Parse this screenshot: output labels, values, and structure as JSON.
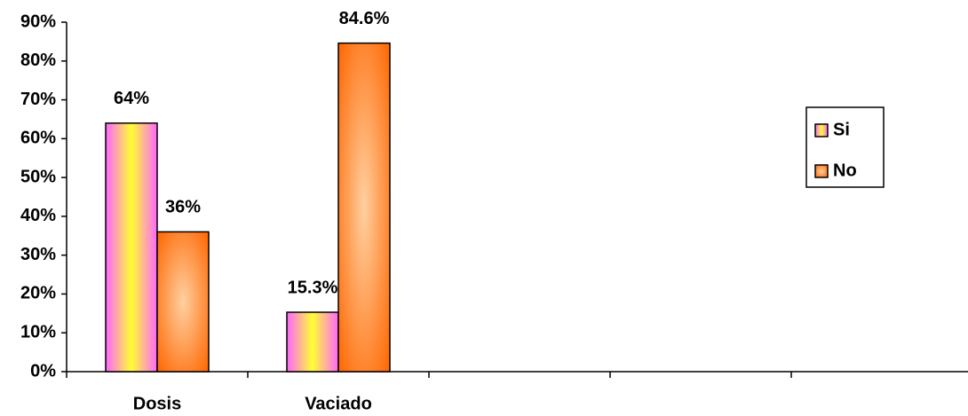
{
  "chart_data": {
    "type": "bar",
    "categories": [
      "Dosis",
      "Vaciado",
      null,
      null,
      null
    ],
    "series": [
      {
        "name": "Si",
        "color": "#ff66ff",
        "values": [
          64,
          15.3,
          null,
          null,
          null
        ],
        "value_labels": [
          "64%",
          "15.3%",
          null,
          null,
          null
        ]
      },
      {
        "name": "No",
        "color": "#ff6600",
        "values": [
          36,
          84.6,
          null,
          null,
          null
        ],
        "value_labels": [
          "36%",
          "84.6%",
          null,
          null,
          null
        ]
      }
    ],
    "ylim": [
      0,
      90
    ],
    "yticks": [
      {
        "value": 0,
        "label": "0%"
      },
      {
        "value": 10,
        "label": "10%"
      },
      {
        "value": 20,
        "label": "20%"
      },
      {
        "value": 30,
        "label": "30%"
      },
      {
        "value": 40,
        "label": "40%"
      },
      {
        "value": 50,
        "label": "50%"
      },
      {
        "value": 60,
        "label": "60%"
      },
      {
        "value": 70,
        "label": "70%"
      },
      {
        "value": 80,
        "label": "80%"
      },
      {
        "value": 90,
        "label": "90%"
      }
    ],
    "legend": "right"
  }
}
